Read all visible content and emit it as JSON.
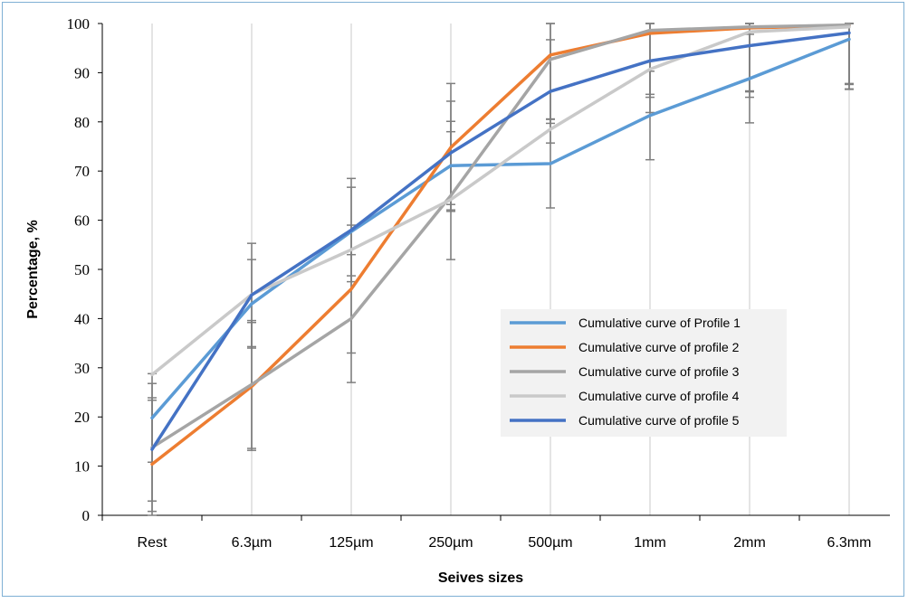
{
  "chart_data": {
    "type": "line",
    "title": "",
    "xlabel": "Seives sizes",
    "ylabel": "Percentage, %",
    "categories": [
      "Rest",
      "6.3µm",
      "125µm",
      "250µm",
      "500µm",
      "1mm",
      "2mm",
      "6.3mm"
    ],
    "ylim": [
      0,
      100
    ],
    "yticks": [
      0,
      10,
      20,
      30,
      40,
      50,
      60,
      70,
      80,
      90,
      100
    ],
    "grid": "vertical",
    "legend_position": "center-right",
    "series": [
      {
        "name": "Cumulative curve of Profile 1",
        "color": "#5b9bd5",
        "values": [
          19.8,
          43,
          57.7,
          71.1,
          71.5,
          81.3,
          88.8,
          96.8
        ],
        "error": [
          9,
          9,
          9,
          9,
          9,
          9,
          9,
          9
        ]
      },
      {
        "name": "Cumulative curve of profile 2",
        "color": "#ed7d31",
        "values": [
          10.4,
          26.2,
          46,
          74.8,
          93.6,
          98,
          99.1,
          99.6
        ],
        "error": [
          13,
          13,
          13,
          13,
          13,
          13,
          13,
          13
        ]
      },
      {
        "name": "Cumulative curve of profile 3",
        "color": "#a5a5a5",
        "values": [
          13.8,
          26.6,
          40,
          65,
          92.7,
          98.6,
          99.3,
          99.7
        ],
        "error": [
          13,
          13,
          13,
          13,
          13,
          13,
          13,
          13
        ]
      },
      {
        "name": "Cumulative curve of profile 4",
        "color": "#c9c9c9",
        "values": [
          28.6,
          44.9,
          54,
          64.2,
          78.5,
          90.7,
          98.3,
          99.3
        ],
        "error": [
          0.5,
          0.5,
          0.5,
          0.5,
          0.5,
          0.5,
          0.5,
          0.5
        ]
      },
      {
        "name": "Cumulative curve of profile 5",
        "color": "#4472c4",
        "values": [
          13.4,
          44.8,
          58,
          73.7,
          86.2,
          92.4,
          95.5,
          98.1
        ],
        "error": [
          10.5,
          10.5,
          10.5,
          10.5,
          10.5,
          10.5,
          10.5,
          10.5
        ]
      }
    ]
  }
}
